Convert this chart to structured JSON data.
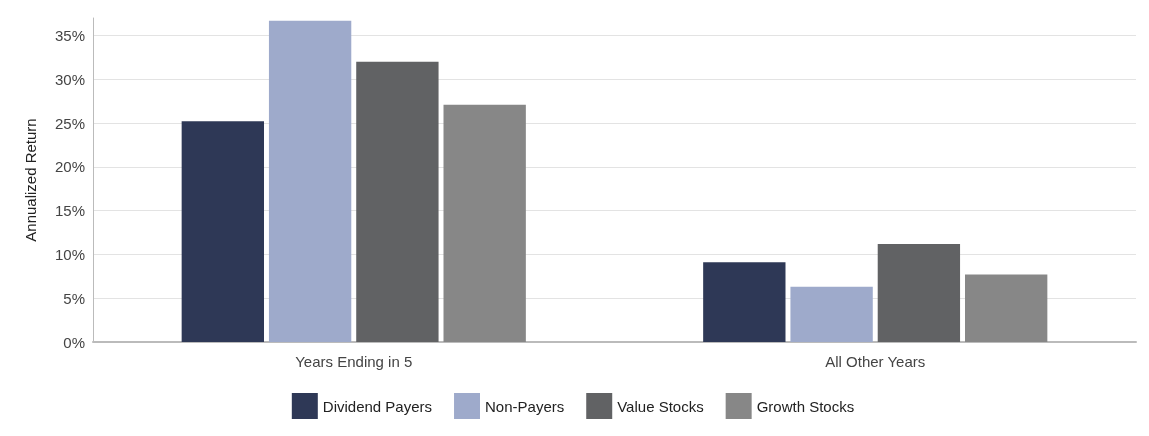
{
  "chart_data": {
    "type": "bar",
    "ylabel": "Annualized Return",
    "categories": [
      "Years Ending in 5",
      "All Other Years"
    ],
    "series": [
      {
        "name": "Dividend Payers",
        "color": "#2e3856",
        "values": [
          25.2,
          9.1
        ]
      },
      {
        "name": "Non-Payers",
        "color": "#9eaacb",
        "values": [
          36.7,
          6.3
        ]
      },
      {
        "name": "Value Stocks",
        "color": "#616264",
        "values": [
          32.0,
          11.2
        ]
      },
      {
        "name": "Growth Stocks",
        "color": "#878787",
        "values": [
          27.1,
          7.7
        ]
      }
    ],
    "ylim": [
      0,
      37
    ],
    "yticks": [
      {
        "value": 0,
        "label": "0%"
      },
      {
        "value": 5,
        "label": "5%"
      },
      {
        "value": 10,
        "label": "10%"
      },
      {
        "value": 15,
        "label": "15%"
      },
      {
        "value": 20,
        "label": "20%"
      },
      {
        "value": 25,
        "label": "25%"
      },
      {
        "value": 30,
        "label": "30%"
      },
      {
        "value": 35,
        "label": "35%"
      }
    ],
    "grid": "y",
    "legend": "bottom"
  }
}
